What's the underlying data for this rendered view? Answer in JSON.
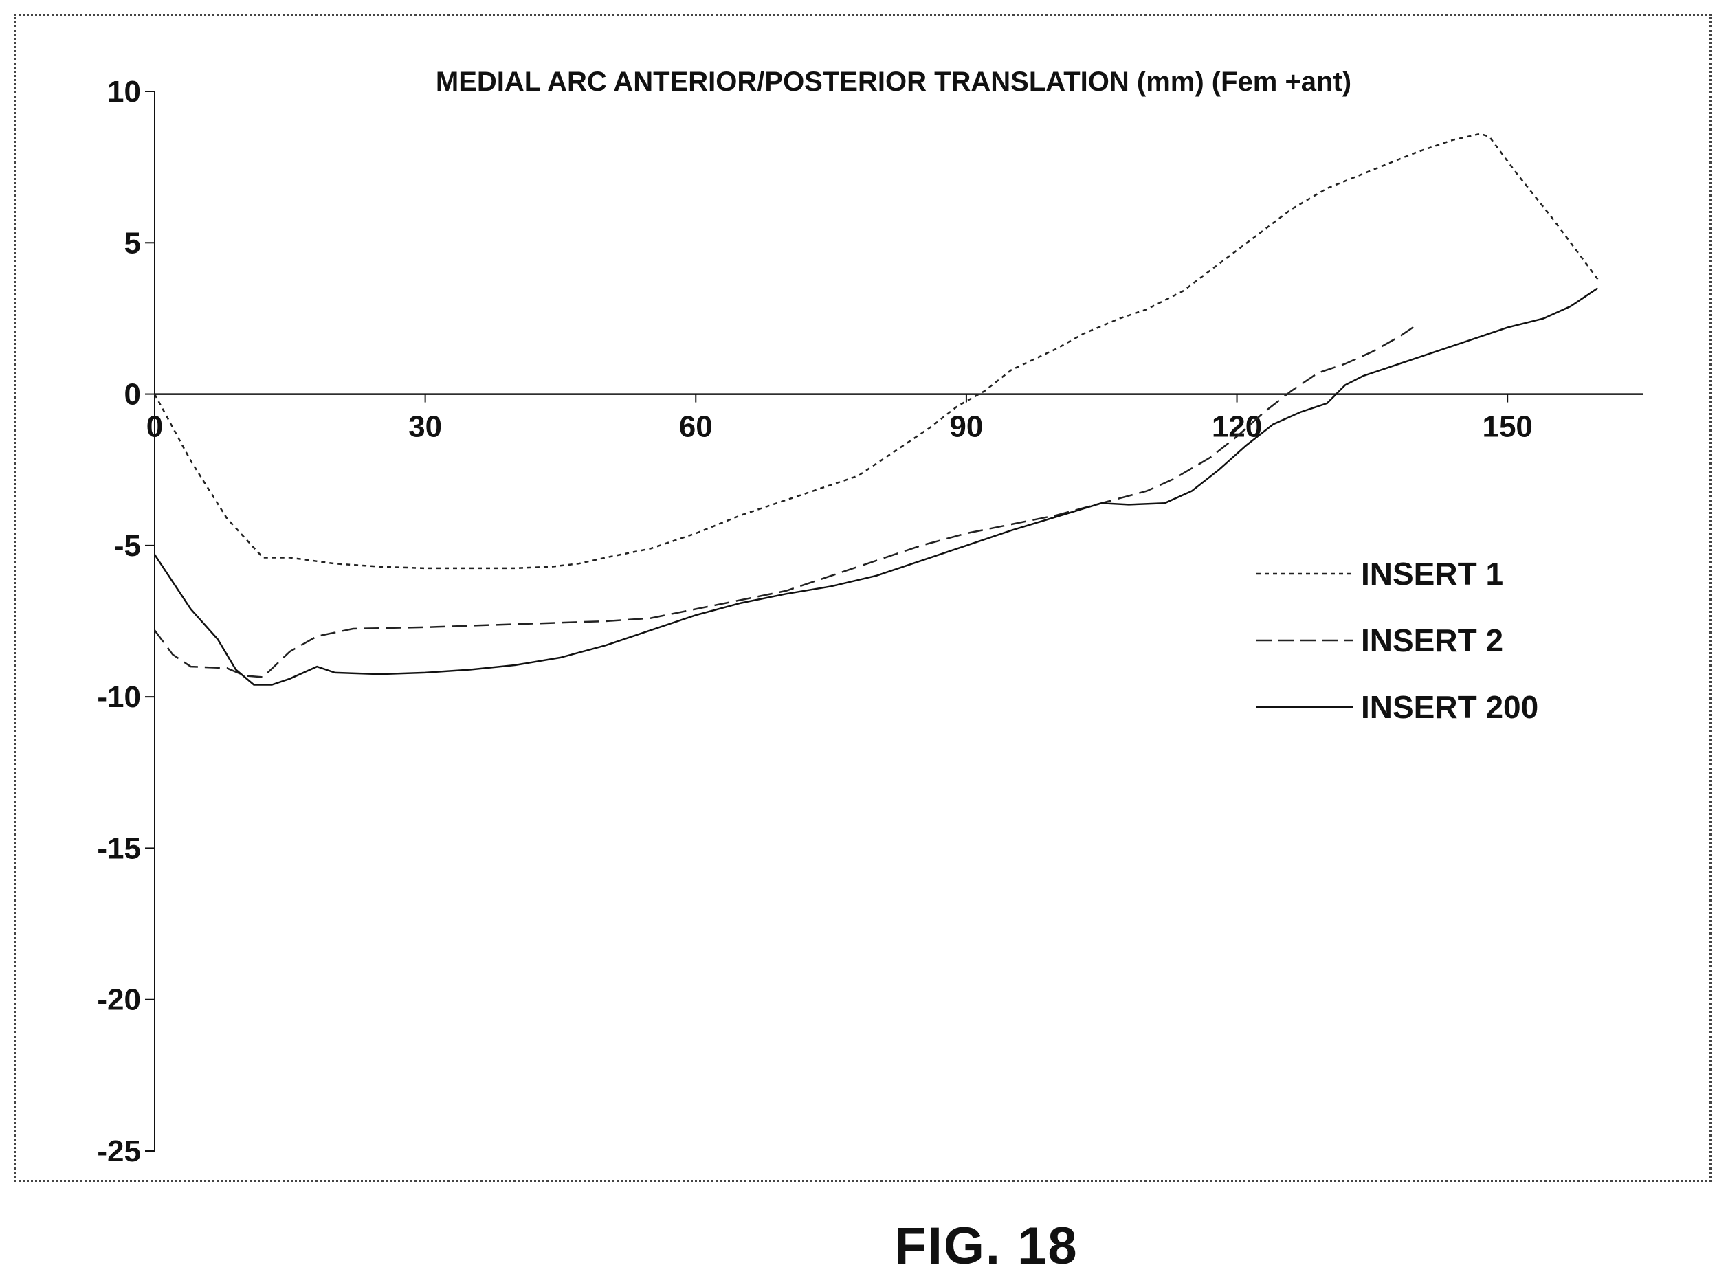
{
  "figure_label": "FIG. 18",
  "chart_data": {
    "type": "line",
    "title": "MEDIAL ARC ANTERIOR/POSTERIOR TRANSLATION (mm) (Fem +ant)",
    "xlabel": "",
    "ylabel": "",
    "xlim": [
      0,
      165
    ],
    "ylim": [
      -25,
      10
    ],
    "xticks": [
      0,
      30,
      60,
      90,
      120,
      150
    ],
    "yticks": [
      10,
      5,
      0,
      -5,
      -10,
      -15,
      -20,
      -25
    ],
    "grid": false,
    "legend_position": "right",
    "series": [
      {
        "name": "INSERT 1",
        "dash": "dotted",
        "color": "#222222",
        "points": [
          [
            0,
            0
          ],
          [
            4,
            -2.2
          ],
          [
            8,
            -4.1
          ],
          [
            12,
            -5.4
          ],
          [
            15,
            -5.4
          ],
          [
            20,
            -5.6
          ],
          [
            25,
            -5.7
          ],
          [
            30,
            -5.75
          ],
          [
            35,
            -5.75
          ],
          [
            40,
            -5.75
          ],
          [
            44,
            -5.7
          ],
          [
            47,
            -5.6
          ],
          [
            50,
            -5.4
          ],
          [
            55,
            -5.1
          ],
          [
            60,
            -4.6
          ],
          [
            65,
            -4
          ],
          [
            70,
            -3.5
          ],
          [
            74,
            -3.1
          ],
          [
            78,
            -2.7
          ],
          [
            82,
            -1.9
          ],
          [
            86,
            -1.1
          ],
          [
            89,
            -0.4
          ],
          [
            92,
            0.1
          ],
          [
            95,
            0.8
          ],
          [
            100,
            1.5
          ],
          [
            103,
            2
          ],
          [
            107,
            2.5
          ],
          [
            110,
            2.8
          ],
          [
            114,
            3.4
          ],
          [
            118,
            4.3
          ],
          [
            122,
            5.2
          ],
          [
            126,
            6.1
          ],
          [
            130,
            6.8
          ],
          [
            135,
            7.4
          ],
          [
            140,
            8
          ],
          [
            144,
            8.4
          ],
          [
            147,
            8.6
          ],
          [
            148,
            8.5
          ],
          [
            151,
            7.3
          ],
          [
            155,
            5.8
          ],
          [
            158,
            4.6
          ],
          [
            160,
            3.8
          ]
        ]
      },
      {
        "name": "INSERT 2",
        "dash": "dashed",
        "color": "#222222",
        "points": [
          [
            0,
            -7.8
          ],
          [
            2,
            -8.6
          ],
          [
            4,
            -9
          ],
          [
            8,
            -9.05
          ],
          [
            10,
            -9.3
          ],
          [
            12,
            -9.35
          ],
          [
            15,
            -8.5
          ],
          [
            18,
            -8
          ],
          [
            22,
            -7.75
          ],
          [
            30,
            -7.7
          ],
          [
            40,
            -7.6
          ],
          [
            50,
            -7.5
          ],
          [
            55,
            -7.4
          ],
          [
            60,
            -7.1
          ],
          [
            65,
            -6.8
          ],
          [
            70,
            -6.5
          ],
          [
            75,
            -6
          ],
          [
            80,
            -5.5
          ],
          [
            85,
            -5
          ],
          [
            90,
            -4.6
          ],
          [
            95,
            -4.3
          ],
          [
            100,
            -4
          ],
          [
            105,
            -3.6
          ],
          [
            110,
            -3.2
          ],
          [
            113,
            -2.8
          ],
          [
            117,
            -2.1
          ],
          [
            120,
            -1.4
          ],
          [
            123,
            -0.6
          ],
          [
            126,
            0.1
          ],
          [
            129,
            0.7
          ],
          [
            132,
            1
          ],
          [
            135,
            1.4
          ],
          [
            138,
            1.9
          ],
          [
            140,
            2.3
          ]
        ]
      },
      {
        "name": "INSERT 200",
        "dash": "solid",
        "color": "#111111",
        "points": [
          [
            0,
            -5.3
          ],
          [
            2,
            -6.2
          ],
          [
            4,
            -7.1
          ],
          [
            7,
            -8.1
          ],
          [
            9,
            -9.1
          ],
          [
            11,
            -9.6
          ],
          [
            13,
            -9.6
          ],
          [
            15,
            -9.4
          ],
          [
            18,
            -9
          ],
          [
            20,
            -9.2
          ],
          [
            25,
            -9.25
          ],
          [
            30,
            -9.2
          ],
          [
            35,
            -9.1
          ],
          [
            40,
            -8.95
          ],
          [
            45,
            -8.7
          ],
          [
            50,
            -8.3
          ],
          [
            55,
            -7.8
          ],
          [
            60,
            -7.3
          ],
          [
            65,
            -6.9
          ],
          [
            70,
            -6.6
          ],
          [
            75,
            -6.35
          ],
          [
            80,
            -6
          ],
          [
            85,
            -5.5
          ],
          [
            90,
            -5
          ],
          [
            95,
            -4.5
          ],
          [
            100,
            -4.05
          ],
          [
            105,
            -3.6
          ],
          [
            108,
            -3.65
          ],
          [
            112,
            -3.6
          ],
          [
            115,
            -3.2
          ],
          [
            118,
            -2.5
          ],
          [
            121,
            -1.7
          ],
          [
            124,
            -1
          ],
          [
            127,
            -0.6
          ],
          [
            130,
            -0.3
          ],
          [
            132,
            0.3
          ],
          [
            134,
            0.6
          ],
          [
            137,
            0.9
          ],
          [
            140,
            1.2
          ],
          [
            145,
            1.7
          ],
          [
            150,
            2.2
          ],
          [
            154,
            2.5
          ],
          [
            157,
            2.9
          ],
          [
            160,
            3.5
          ]
        ]
      }
    ]
  }
}
